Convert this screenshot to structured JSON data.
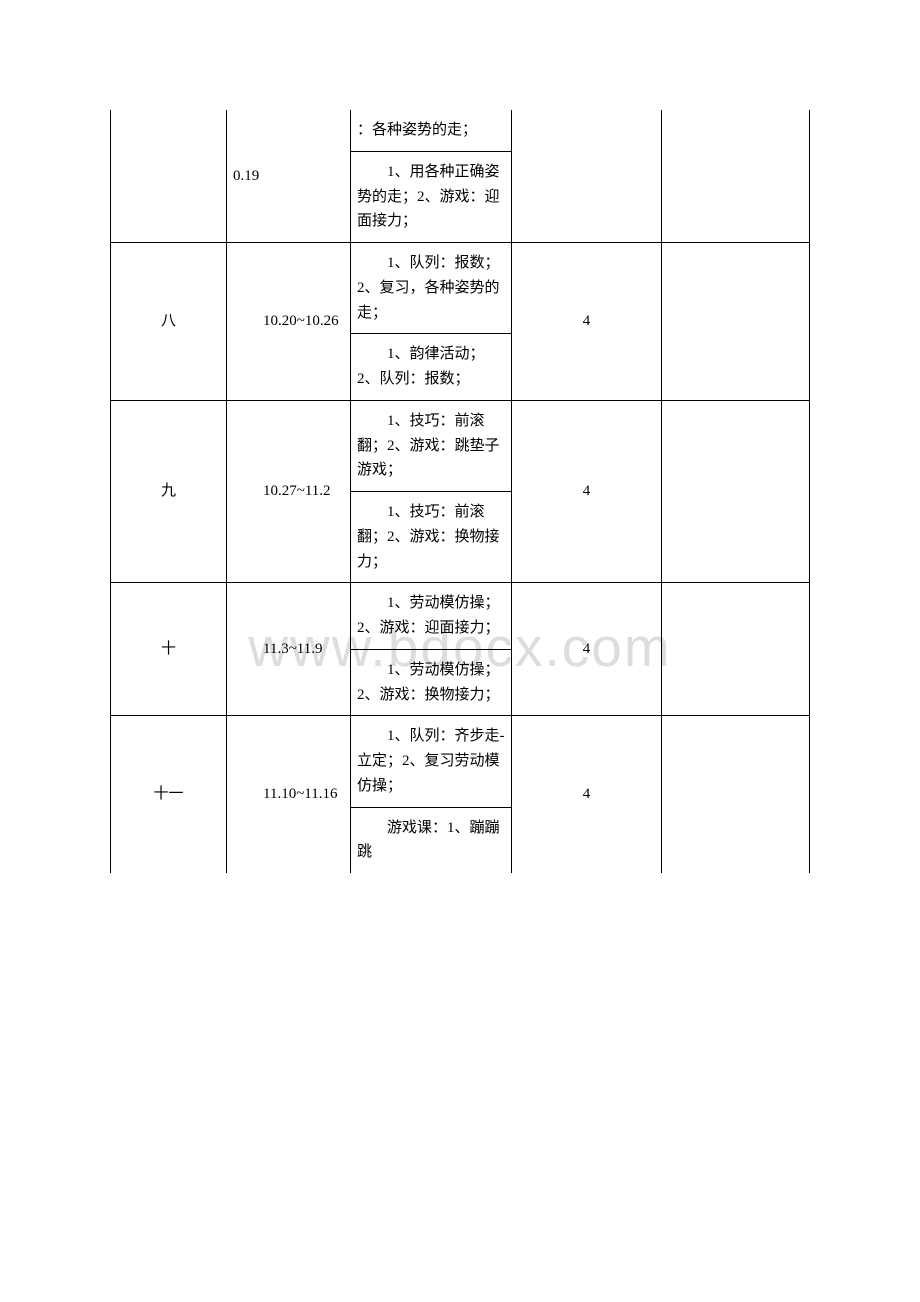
{
  "watermark": "www.bdocx.com",
  "rows": [
    {
      "week": "",
      "date": "0.19",
      "contents": [
        "：各种姿势的走；",
        "　　1、用各种正确姿势的走；2、游戏：迎面接力；"
      ],
      "hours": "",
      "note": "",
      "continuation": true
    },
    {
      "week": "八",
      "date": "　　10.20~10.26",
      "contents": [
        "　　1、队列：报数；2、复习，各种姿势的走；",
        "　　1、韵律活动；2、队列：报数；"
      ],
      "hours": "4",
      "note": ""
    },
    {
      "week": "九",
      "date": "　　10.27~11.2",
      "contents": [
        "　　1、技巧：前滚翻；2、游戏：跳垫子游戏；",
        "　　1、技巧：前滚翻；2、游戏：换物接力；"
      ],
      "hours": "4",
      "note": ""
    },
    {
      "week": "十",
      "date": "　　11.3~11.9",
      "contents": [
        "　　1、劳动模仿操；2、游戏：迎面接力；",
        "　　1、劳动模仿操；2、游戏：换物接力；"
      ],
      "hours": "4",
      "note": ""
    },
    {
      "week": "十一",
      "date": "　　11.10~11.16",
      "contents": [
        "　　1、队列：齐步走-立定；2、复习劳动模仿操；",
        "　　游戏课：1、蹦蹦跳"
      ],
      "hours": "4",
      "note": "",
      "lastCut": true
    }
  ]
}
